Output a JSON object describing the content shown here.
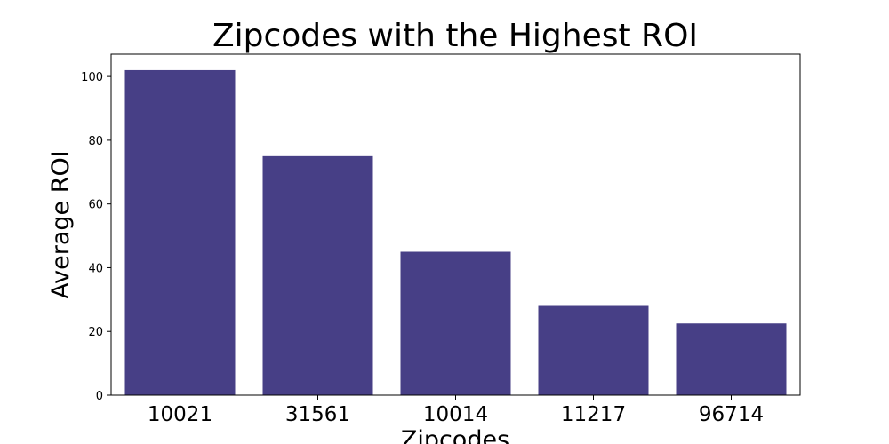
{
  "chart_data": {
    "type": "bar",
    "title": "Zipcodes with the Highest ROI",
    "xlabel": "Zipcodes",
    "ylabel": "Average ROI",
    "categories": [
      "10021",
      "31561",
      "10014",
      "11217",
      "96714"
    ],
    "values": [
      102,
      75,
      45,
      28,
      22.5
    ],
    "ylim": [
      0,
      107
    ],
    "yticks": [
      0,
      20,
      40,
      60,
      80,
      100
    ],
    "grid": false,
    "bar_color": "#473f86"
  }
}
